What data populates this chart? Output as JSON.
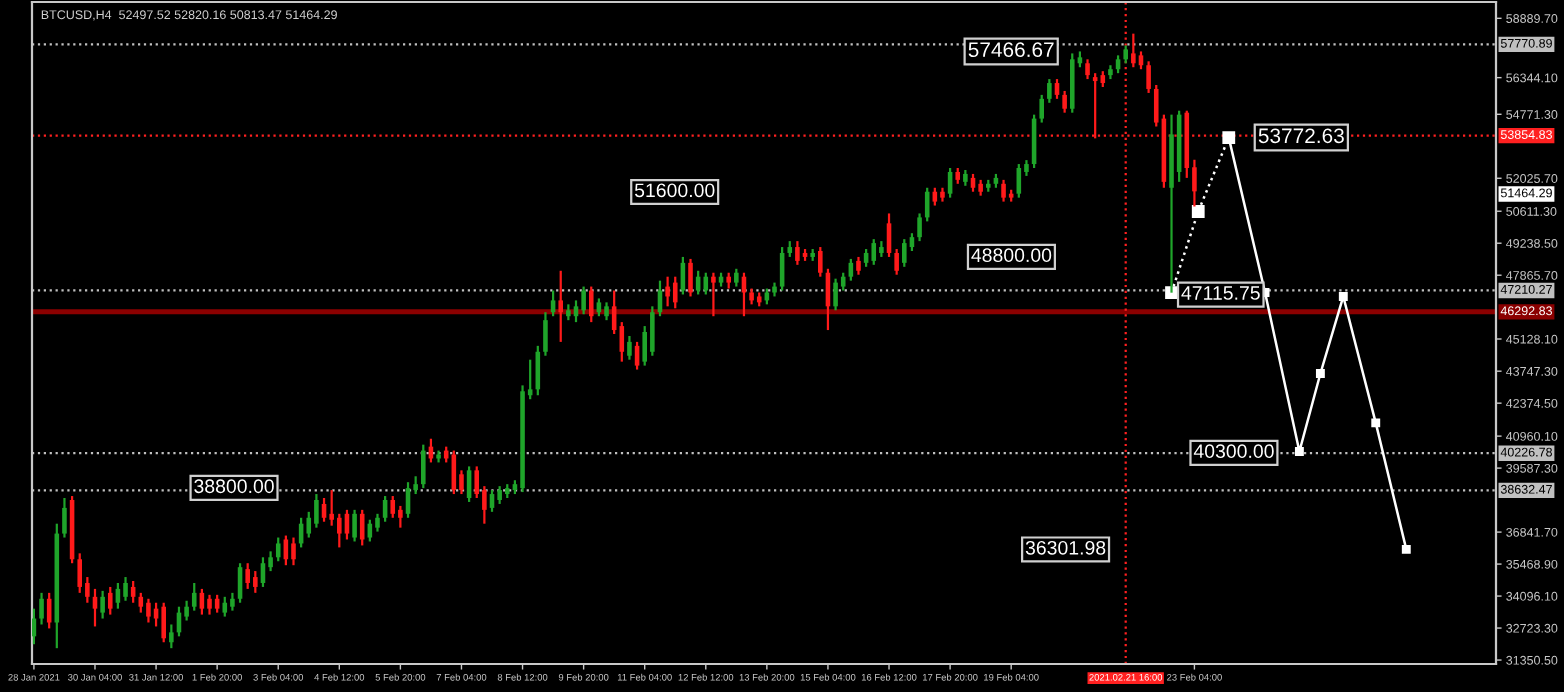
{
  "chart_data": {
    "type": "candlestick",
    "title": "BTCUSD,H4  52497.52 52820.16 50813.47 51464.29",
    "xlim": [
      "2021-01-28T19:00",
      "2021-03-01T18:00"
    ],
    "ylim": [
      31181,
      59590
    ],
    "xticks": [
      {
        "value": "2021-01-28T20:00",
        "label": "28 Jan 2021"
      },
      {
        "value": "2021-01-30T04:00",
        "label": "30 Jan 04:00"
      },
      {
        "value": "2021-01-31T12:00",
        "label": "31 Jan 12:00"
      },
      {
        "value": "2021-02-01T20:00",
        "label": "1 Feb 20:00"
      },
      {
        "value": "2021-02-03T04:00",
        "label": "3 Feb 04:00"
      },
      {
        "value": "2021-02-04T12:00",
        "label": "4 Feb 12:00"
      },
      {
        "value": "2021-02-05T20:00",
        "label": "5 Feb 20:00"
      },
      {
        "value": "2021-02-07T04:00",
        "label": "7 Feb 04:00"
      },
      {
        "value": "2021-02-08T12:00",
        "label": "8 Feb 12:00"
      },
      {
        "value": "2021-02-09T20:00",
        "label": "9 Feb 20:00"
      },
      {
        "value": "2021-02-11T04:00",
        "label": "11 Feb 04:00"
      },
      {
        "value": "2021-02-12T12:00",
        "label": "12 Feb 12:00"
      },
      {
        "value": "2021-02-13T20:00",
        "label": "13 Feb 20:00"
      },
      {
        "value": "2021-02-15T04:00",
        "label": "15 Feb 04:00"
      },
      {
        "value": "2021-02-16T12:00",
        "label": "16 Feb 12:00"
      },
      {
        "value": "2021-02-17T20:00",
        "label": "17 Feb 20:00"
      },
      {
        "value": "2021-02-19T04:00",
        "label": "19 Feb 04:00"
      },
      {
        "value": "2021-02-23T04:00",
        "label": "23 Feb 04:00"
      }
    ],
    "yticks": [
      {
        "value": 58889.7,
        "label": "58889.70"
      },
      {
        "value": 56344.1,
        "label": "56344.10"
      },
      {
        "value": 54771.3,
        "label": "54771.30"
      },
      {
        "value": 52025.7,
        "label": "52025.70"
      },
      {
        "value": 50611.3,
        "label": "50611.30"
      },
      {
        "value": 49238.5,
        "label": "49238.50"
      },
      {
        "value": 47865.7,
        "label": "47865.70"
      },
      {
        "value": 45128.1,
        "label": "45128.10"
      },
      {
        "value": 43747.3,
        "label": "43747.30"
      },
      {
        "value": 42374.5,
        "label": "42374.50"
      },
      {
        "value": 40960.1,
        "label": "40960.10"
      },
      {
        "value": 39587.3,
        "label": "39587.30"
      },
      {
        "value": 36841.7,
        "label": "36841.70"
      },
      {
        "value": 35468.9,
        "label": "35468.90"
      },
      {
        "value": 34096.1,
        "label": "34096.10"
      },
      {
        "value": 32723.3,
        "label": "32723.30"
      },
      {
        "value": 31350.5,
        "label": "31350.50"
      }
    ],
    "grid": false,
    "legend": false,
    "series": [
      {
        "color": "#1fa52a",
        "x": [
          "2021-01-28T20:00",
          "2021-01-29T00:00",
          "2021-01-29T08:00",
          "2021-01-29T12:00",
          "2021-01-30T08:00",
          "2021-01-30T16:00",
          "2021-01-30T20:00",
          "2021-01-31T20:00",
          "2021-02-01T00:00",
          "2021-02-01T04:00",
          "2021-02-01T08:00",
          "2021-02-02T00:00",
          "2021-02-02T04:00",
          "2021-02-02T08:00",
          "2021-02-02T20:00",
          "2021-02-03T00:00",
          "2021-02-03T04:00",
          "2021-02-03T16:00",
          "2021-02-03T20:00",
          "2021-02-04T00:00",
          "2021-02-04T20:00",
          "2021-02-05T04:00",
          "2021-02-05T08:00",
          "2021-02-05T12:00",
          "2021-02-06T00:00",
          "2021-02-06T04:00",
          "2021-02-06T08:00",
          "2021-02-06T16:00",
          "2021-02-07T08:00",
          "2021-02-07T20:00",
          "2021-02-08T00:00",
          "2021-02-08T04:00",
          "2021-02-08T08:00",
          "2021-02-08T12:00",
          "2021-02-08T16:00",
          "2021-02-08T20:00",
          "2021-02-09T00:00",
          "2021-02-09T04:00",
          "2021-02-09T12:00",
          "2021-02-09T16:00",
          "2021-02-09T20:00",
          "2021-02-10T04:00",
          "2021-02-10T08:00",
          "2021-02-10T20:00",
          "2021-02-11T04:00",
          "2021-02-11T08:00",
          "2021-02-11T12:00",
          "2021-02-12T00:00",
          "2021-02-12T08:00",
          "2021-02-12T12:00",
          "2021-02-12T20:00",
          "2021-02-13T04:00",
          "2021-02-13T20:00",
          "2021-02-14T00:00",
          "2021-02-14T04:00",
          "2021-02-14T08:00",
          "2021-02-14T20:00",
          "2021-02-15T08:00",
          "2021-02-15T12:00",
          "2021-02-15T16:00",
          "2021-02-16T00:00",
          "2021-02-16T04:00",
          "2021-02-16T08:00",
          "2021-02-16T20:00",
          "2021-02-17T00:00",
          "2021-02-17T04:00",
          "2021-02-17T08:00",
          "2021-02-17T20:00",
          "2021-02-18T04:00",
          "2021-02-18T16:00",
          "2021-02-18T20:00",
          "2021-02-19T08:00",
          "2021-02-19T12:00",
          "2021-02-19T16:00",
          "2021-02-19T20:00",
          "2021-02-20T00:00",
          "2021-02-20T12:00",
          "2021-02-20T16:00",
          "2021-02-21T08:00",
          "2021-02-21T12:00",
          "2021-02-21T16:00",
          "2021-02-22T16:00",
          "2021-02-22T20:00"
        ],
        "ohlc": [
          [
            32368,
            33556,
            32029,
            33132
          ],
          [
            33132,
            34234,
            32877,
            33980
          ],
          [
            32962,
            37202,
            31860,
            36778
          ],
          [
            36778,
            38304,
            36608,
            37880
          ],
          [
            33386,
            34319,
            33132,
            34064
          ],
          [
            33810,
            34658,
            33556,
            34404
          ],
          [
            34064,
            34912,
            33895,
            34658
          ],
          [
            32114,
            32877,
            31860,
            32538
          ],
          [
            32538,
            33640,
            32368,
            33386
          ],
          [
            33216,
            33895,
            33047,
            33640
          ],
          [
            33640,
            34658,
            33471,
            34234
          ],
          [
            33386,
            34064,
            33216,
            33810
          ],
          [
            33640,
            34234,
            33471,
            33980
          ],
          [
            33980,
            35506,
            33810,
            35336
          ],
          [
            34658,
            35760,
            34488,
            35506
          ],
          [
            35336,
            36015,
            35167,
            35760
          ],
          [
            35760,
            36608,
            35591,
            36354
          ],
          [
            36354,
            37456,
            36184,
            37202
          ],
          [
            36778,
            37711,
            36608,
            37456
          ],
          [
            37202,
            38474,
            37032,
            38220
          ],
          [
            36608,
            37796,
            36439,
            37626
          ],
          [
            36608,
            37372,
            36439,
            37202
          ],
          [
            37032,
            37626,
            36863,
            37456
          ],
          [
            37456,
            38389,
            37287,
            38220
          ],
          [
            37626,
            38983,
            37456,
            38728
          ],
          [
            38644,
            39237,
            38474,
            38898
          ],
          [
            38898,
            40594,
            38728,
            40340
          ],
          [
            40000,
            40340,
            39831,
            40170
          ],
          [
            38304,
            39661,
            38135,
            39492
          ],
          [
            37880,
            38644,
            37711,
            38474
          ],
          [
            38220,
            38813,
            38050,
            38644
          ],
          [
            38474,
            38898,
            38304,
            38728
          ],
          [
            38644,
            39068,
            38474,
            38898
          ],
          [
            38728,
            43138,
            38559,
            42884
          ],
          [
            42714,
            44240,
            42544,
            42968
          ],
          [
            42968,
            44834,
            42714,
            44580
          ],
          [
            44580,
            46276,
            44410,
            45936
          ],
          [
            46276,
            47208,
            46106,
            46784
          ],
          [
            46106,
            46615,
            45936,
            46360
          ],
          [
            46106,
            46784,
            45852,
            46530
          ],
          [
            46360,
            47378,
            46191,
            47208
          ],
          [
            46276,
            46869,
            46106,
            46700
          ],
          [
            46106,
            46700,
            45936,
            46530
          ],
          [
            44410,
            45258,
            44240,
            45004
          ],
          [
            44156,
            45682,
            43986,
            45428
          ],
          [
            44580,
            46530,
            44410,
            46276
          ],
          [
            46276,
            47632,
            46106,
            47208
          ],
          [
            47208,
            48650,
            47039,
            48396
          ],
          [
            47208,
            48056,
            47039,
            47802
          ],
          [
            47208,
            47972,
            47039,
            47802
          ],
          [
            47548,
            47972,
            47378,
            47802
          ],
          [
            47548,
            48141,
            47378,
            47972
          ],
          [
            46784,
            47293,
            46615,
            47124
          ],
          [
            47124,
            47548,
            46954,
            47378
          ],
          [
            47378,
            49074,
            47208,
            48820
          ],
          [
            48820,
            49328,
            48650,
            49074
          ],
          [
            48650,
            48989,
            48480,
            48820
          ],
          [
            46530,
            47717,
            46360,
            47548
          ],
          [
            47378,
            47972,
            47208,
            47802
          ],
          [
            47802,
            48565,
            47632,
            48396
          ],
          [
            48396,
            48989,
            48226,
            48820
          ],
          [
            48480,
            49413,
            48311,
            49244
          ],
          [
            48820,
            49328,
            48650,
            49074
          ],
          [
            48396,
            49413,
            48226,
            49244
          ],
          [
            49074,
            49668,
            48904,
            49498
          ],
          [
            49498,
            50516,
            49328,
            50346
          ],
          [
            50346,
            51618,
            50176,
            51448
          ],
          [
            51364,
            52466,
            51194,
            52296
          ],
          [
            51872,
            52381,
            51703,
            52212
          ],
          [
            51618,
            51957,
            51448,
            51788
          ],
          [
            51788,
            52212,
            51618,
            52042
          ],
          [
            51364,
            52636,
            51194,
            52466
          ],
          [
            52296,
            52805,
            52127,
            52636
          ],
          [
            52636,
            54756,
            52466,
            54586
          ],
          [
            54586,
            55604,
            54416,
            55434
          ],
          [
            55434,
            56282,
            55264,
            56112
          ],
          [
            55010,
            57384,
            54840,
            57130
          ],
          [
            56960,
            57469,
            56791,
            57215
          ],
          [
            56452,
            56876,
            56282,
            56706
          ],
          [
            56706,
            57300,
            56536,
            57130
          ],
          [
            57130,
            57724,
            56960,
            57554
          ],
          [
            51618,
            54756,
            47115.75,
            53908
          ],
          [
            52296,
            54925,
            51872,
            54756
          ]
        ]
      },
      {
        "color": "#ff1a1a",
        "x": [
          "2021-01-29T04:00",
          "2021-01-29T16:00",
          "2021-01-29T20:00",
          "2021-01-30T00:00",
          "2021-01-30T04:00",
          "2021-01-30T12:00",
          "2021-01-31T00:00",
          "2021-01-31T04:00",
          "2021-01-31T08:00",
          "2021-01-31T12:00",
          "2021-01-31T16:00",
          "2021-02-01T12:00",
          "2021-02-01T16:00",
          "2021-02-01T20:00",
          "2021-02-02T12:00",
          "2021-02-02T16:00",
          "2021-02-03T08:00",
          "2021-02-03T12:00",
          "2021-02-04T04:00",
          "2021-02-04T08:00",
          "2021-02-04T12:00",
          "2021-02-04T16:00",
          "2021-02-05T00:00",
          "2021-02-05T16:00",
          "2021-02-05T20:00",
          "2021-02-06T12:00",
          "2021-02-06T20:00",
          "2021-02-07T00:00",
          "2021-02-07T04:00",
          "2021-02-07T12:00",
          "2021-02-07T16:00",
          "2021-02-09T08:00",
          "2021-02-10T00:00",
          "2021-02-10T12:00",
          "2021-02-10T16:00",
          "2021-02-11T00:00",
          "2021-02-11T16:00",
          "2021-02-11T20:00",
          "2021-02-12T04:00",
          "2021-02-12T16:00",
          "2021-02-13T00:00",
          "2021-02-13T08:00",
          "2021-02-13T12:00",
          "2021-02-13T16:00",
          "2021-02-14T12:00",
          "2021-02-14T16:00",
          "2021-02-15T00:00",
          "2021-02-15T04:00",
          "2021-02-15T20:00",
          "2021-02-16T12:00",
          "2021-02-16T16:00",
          "2021-02-17T12:00",
          "2021-02-17T16:00",
          "2021-02-18T00:00",
          "2021-02-18T08:00",
          "2021-02-18T12:00",
          "2021-02-19T00:00",
          "2021-02-19T04:00",
          "2021-02-20T04:00",
          "2021-02-20T08:00",
          "2021-02-20T20:00",
          "2021-02-21T00:00",
          "2021-02-21T04:00",
          "2021-02-21T20:00",
          "2021-02-22T00:00",
          "2021-02-22T04:00",
          "2021-02-22T08:00",
          "2021-02-22T12:00",
          "2021-02-23T00:00",
          "2021-02-23T04:00"
        ],
        "ohlc": [
          [
            33980,
            34234,
            32708,
            32962
          ],
          [
            38220,
            38389,
            35506,
            35676
          ],
          [
            35676,
            35930,
            34234,
            34488
          ],
          [
            34658,
            34912,
            33810,
            34064
          ],
          [
            34064,
            34404,
            32792,
            33556
          ],
          [
            34234,
            34488,
            33301,
            33556
          ],
          [
            34488,
            34743,
            33810,
            34064
          ],
          [
            34064,
            34234,
            33386,
            33640
          ],
          [
            33810,
            33980,
            32962,
            33216
          ],
          [
            33556,
            33810,
            32792,
            33132
          ],
          [
            33640,
            33810,
            32114,
            32284
          ],
          [
            34234,
            34404,
            33301,
            33556
          ],
          [
            33980,
            34149,
            33301,
            33556
          ],
          [
            33980,
            34149,
            33386,
            33556
          ],
          [
            35252,
            35506,
            34404,
            34658
          ],
          [
            34912,
            35167,
            34234,
            34488
          ],
          [
            36524,
            36693,
            35421,
            35676
          ],
          [
            36354,
            36608,
            35421,
            35676
          ],
          [
            38050,
            38304,
            37287,
            37456
          ],
          [
            37626,
            38644,
            37117,
            37372
          ],
          [
            37456,
            37626,
            36184,
            36778
          ],
          [
            37626,
            37796,
            36524,
            36778
          ],
          [
            37626,
            37796,
            36269,
            36524
          ],
          [
            38220,
            38389,
            37456,
            37626
          ],
          [
            37796,
            37965,
            37032,
            37456
          ],
          [
            40509,
            40848,
            39831,
            40000
          ],
          [
            40340,
            40509,
            39831,
            40000
          ],
          [
            40170,
            40340,
            38474,
            38644
          ],
          [
            39322,
            39492,
            38474,
            38644
          ],
          [
            39492,
            39661,
            38304,
            38474
          ],
          [
            38644,
            38813,
            37202,
            37796
          ],
          [
            46784,
            48056,
            45004,
            46276
          ],
          [
            47208,
            47378,
            45852,
            46106
          ],
          [
            46530,
            47208,
            45343,
            45512
          ],
          [
            45682,
            45852,
            44156,
            44580
          ],
          [
            44834,
            45004,
            43816,
            43986
          ],
          [
            47378,
            47802,
            46530,
            46954
          ],
          [
            47548,
            47802,
            46445,
            46700
          ],
          [
            48396,
            48565,
            46954,
            47124
          ],
          [
            47802,
            47972,
            46106,
            47548
          ],
          [
            47802,
            47972,
            47293,
            47548
          ],
          [
            47802,
            47972,
            46106,
            47124
          ],
          [
            47124,
            47293,
            46615,
            46784
          ],
          [
            46954,
            47124,
            46530,
            46700
          ],
          [
            49074,
            49328,
            48311,
            48480
          ],
          [
            48820,
            48989,
            48480,
            48650
          ],
          [
            48904,
            49074,
            47802,
            47972
          ],
          [
            47972,
            48141,
            45512,
            46530
          ],
          [
            48480,
            48650,
            47887,
            48056
          ],
          [
            50092,
            50516,
            48650,
            48820
          ],
          [
            48820,
            48989,
            47887,
            48056
          ],
          [
            51448,
            51618,
            50855,
            51024
          ],
          [
            51448,
            51618,
            51024,
            51194
          ],
          [
            52296,
            52466,
            51788,
            51957
          ],
          [
            52042,
            52212,
            51448,
            51618
          ],
          [
            51788,
            51957,
            51279,
            51448
          ],
          [
            51788,
            51957,
            51024,
            51194
          ],
          [
            51364,
            51533,
            51024,
            51194
          ],
          [
            56112,
            56282,
            55434,
            55604
          ],
          [
            55604,
            55773,
            54840,
            55010
          ],
          [
            56960,
            57130,
            56282,
            56452
          ],
          [
            56367,
            56536,
            53738,
            56197
          ],
          [
            56452,
            56621,
            55943,
            56112
          ],
          [
            57384,
            58232,
            56791,
            56960
          ],
          [
            57300,
            57469,
            56706,
            56876
          ],
          [
            56876,
            57045,
            55688,
            55858
          ],
          [
            55858,
            56028,
            54247,
            54416
          ],
          [
            54586,
            54756,
            51618,
            51872
          ],
          [
            54840,
            54925,
            52042,
            52466
          ],
          [
            52497.52,
            52820.16,
            50813.47,
            51464.29
          ]
        ]
      },
      {
        "type": "line",
        "color": "#ffffff",
        "line_style": "dotted",
        "marker": "square",
        "x": [
          "2021-02-22T16:00",
          "2021-02-23T06:00",
          "2021-02-23T22:00"
        ],
        "values": [
          47115.75,
          50600,
          53772.63
        ]
      },
      {
        "type": "line",
        "color": "#ffffff",
        "line_style": "solid",
        "marker": "square",
        "x": [
          "2021-02-23T22:00",
          "2021-02-24T17:00",
          "2021-02-25T11:00",
          "2021-02-25T22:00",
          "2021-02-26T10:00",
          "2021-02-27T03:00",
          "2021-02-27T19:00"
        ],
        "values": [
          53772.63,
          47124,
          40300,
          43647,
          46954,
          41527,
          36100
        ]
      }
    ],
    "ref_lines": [
      {
        "axis": "y",
        "value": 57770.89,
        "label": "57770.89",
        "color": "#c0c0c0",
        "line_style": "dotted"
      },
      {
        "axis": "y",
        "value": 53854.83,
        "label": "53854.83",
        "color": "#ff2020",
        "line_style": "dotted"
      },
      {
        "axis": "y",
        "value": 47210.27,
        "label": "47210.27",
        "color": "#c0c0c0",
        "line_style": "dotted"
      },
      {
        "axis": "y",
        "value": 46292.83,
        "label": "46292.83",
        "color": "#8b0000",
        "line_style": "solid"
      },
      {
        "axis": "y",
        "value": 40226.78,
        "label": "40226.78",
        "color": "#c0c0c0",
        "line_style": "dotted"
      },
      {
        "axis": "y",
        "value": 38632.47,
        "label": "38632.47",
        "color": "#c0c0c0",
        "line_style": "dotted"
      },
      {
        "axis": "x",
        "value": "2021-02-21T16:00",
        "label": "2021.02.21 16:00",
        "color": "#ff2020",
        "line_style": "dotted"
      }
    ],
    "annotations": [
      {
        "text": "57466.67",
        "x": "2021-02-19T04:00",
        "y": 57466.67
      },
      "51600.00",
      "48800.00",
      {
        "text": "53772.63",
        "x": "2021-02-25T12:00",
        "y": 53772.63
      },
      "47115.75",
      "40300.00",
      "36301.98",
      "38800.00",
      "51464.29"
    ]
  }
}
